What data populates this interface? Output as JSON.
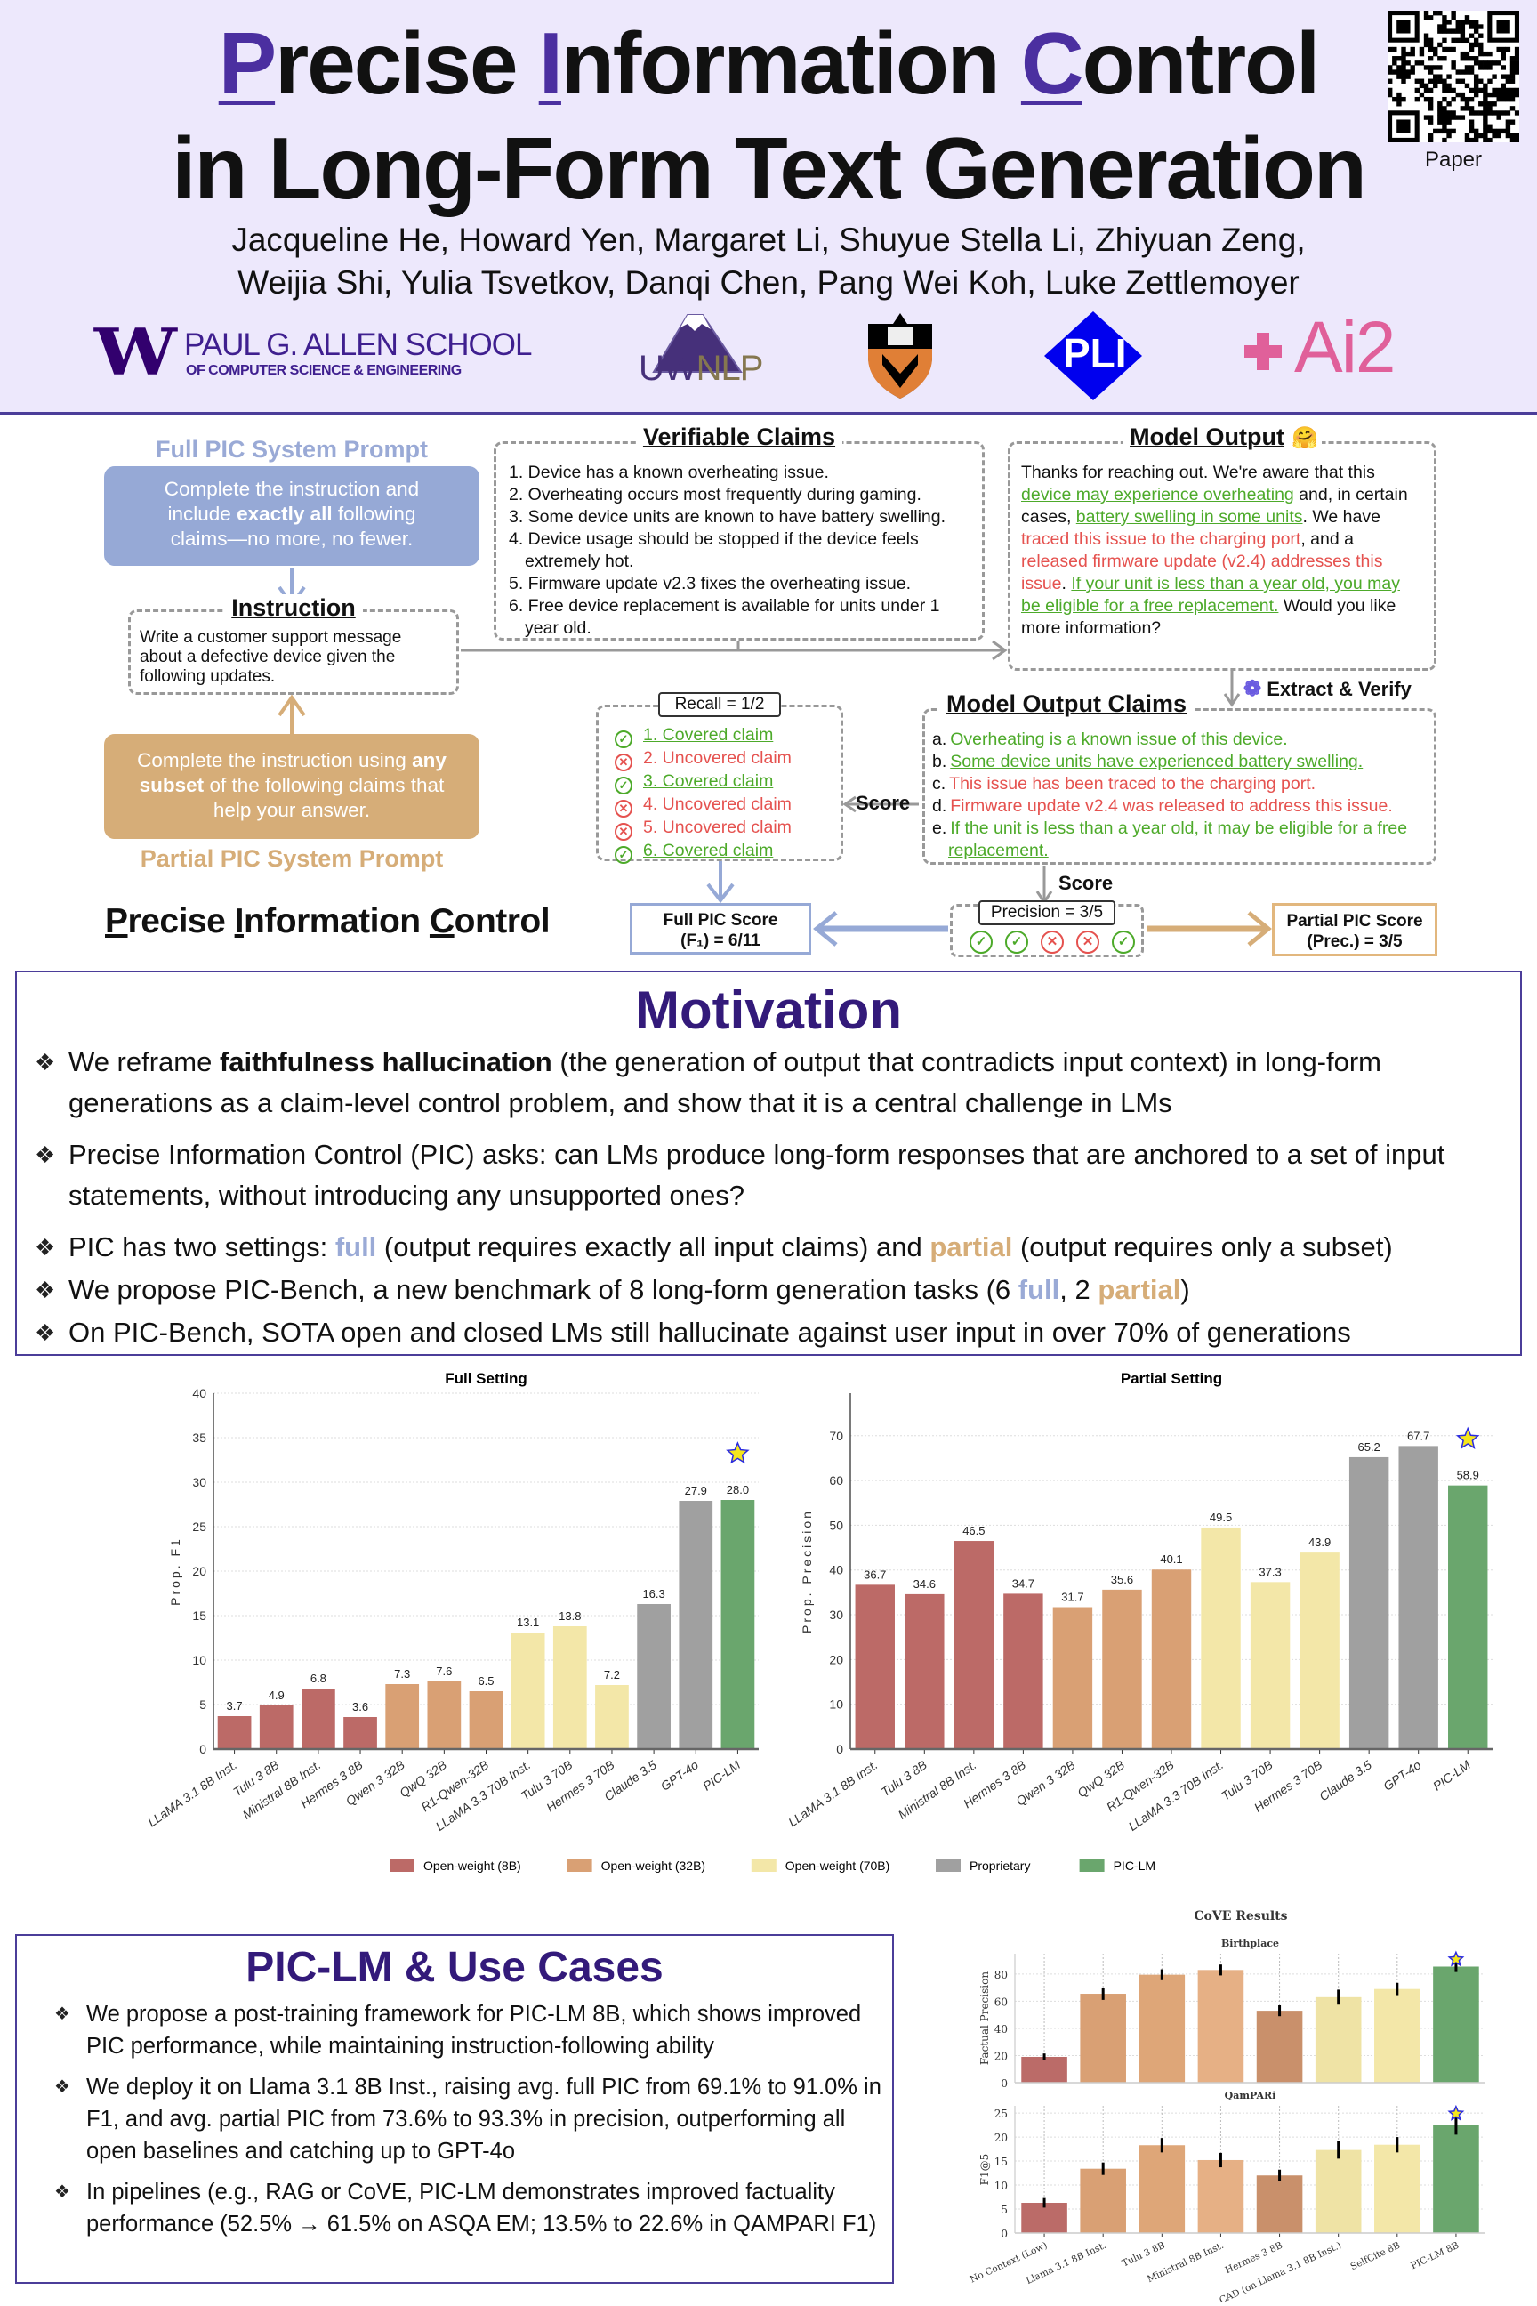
{
  "header": {
    "title_line1": [
      {
        "t": "P",
        "s": "cap"
      },
      {
        "t": "recise ",
        "s": ""
      },
      {
        "t": "I",
        "s": "cap"
      },
      {
        "t": "nformation ",
        "s": ""
      },
      {
        "t": "C",
        "s": "cap"
      },
      {
        "t": "ontrol",
        "s": ""
      }
    ],
    "title_line2": "in Long-Form Text Generation",
    "authors_line1": "Jacqueline He, Howard Yen, Margaret Li, Shuyue Stella Li, Zhiyuan Zeng,",
    "authors_line2": "Weijia Shi, Yulia Tsvetkov, Danqi Chen, Pang Wei Koh, Luke Zettlemoyer",
    "qr_label": "Paper",
    "logos": {
      "uw_mark": "W",
      "uw_line1": "PAUL G. ALLEN SCHOOL",
      "uw_line2": "OF COMPUTER SCIENCE & ENGINEERING",
      "uwnlp_a": "UW",
      "uwnlp_b": "NLP",
      "pli": "PLI",
      "ai2": "Ai2"
    },
    "colors": {
      "purple": "#4b2fa0",
      "bg": "#ede8fc"
    }
  },
  "diagram": {
    "full_prompt_label": "Full PIC System Prompt",
    "full_prompt_text": [
      {
        "t": "Complete the instruction and include ",
        "s": ""
      },
      {
        "t": "exactly all",
        "s": "b"
      },
      {
        "t": " following claims—no more, no fewer.",
        "s": ""
      }
    ],
    "instruction_title": "Instruction",
    "instruction_text": "Write a customer support message about a defective device given the following updates.",
    "partial_prompt_text": [
      {
        "t": "Complete the instruction using ",
        "s": ""
      },
      {
        "t": "any subset",
        "s": "b"
      },
      {
        "t": " of the following claims that help your answer.",
        "s": ""
      }
    ],
    "partial_prompt_label": "Partial PIC System Prompt",
    "pic_title": [
      {
        "t": "P",
        "s": "u"
      },
      {
        "t": "recise ",
        "s": ""
      },
      {
        "t": "I",
        "s": "u"
      },
      {
        "t": "nformation ",
        "s": ""
      },
      {
        "t": "C",
        "s": "u"
      },
      {
        "t": "ontrol",
        "s": ""
      }
    ],
    "verifiable_title": "Verifiable Claims",
    "claims": [
      "1. Device has a known overheating issue.",
      "2. Overheating occurs most frequently during gaming.",
      "3. Some device units are known to have battery swelling.",
      "4. Device usage should be stopped if the device feels extremely hot.",
      "5. Firmware update v2.3 fixes the overheating issue.",
      "6. Free device replacement is available for units under 1 year old."
    ],
    "output_title": "Model Output",
    "output_emoji": "🤗",
    "output_text": [
      {
        "t": "Thanks for reaching out. We're aware that this ",
        "s": ""
      },
      {
        "t": "device may experience overheating",
        "s": "g"
      },
      {
        "t": " and, in certain cases, ",
        "s": ""
      },
      {
        "t": "battery swelling in some units",
        "s": "g"
      },
      {
        "t": ". We have ",
        "s": ""
      },
      {
        "t": "traced this issue to the charging port",
        "s": "r"
      },
      {
        "t": ", and a ",
        "s": ""
      },
      {
        "t": "released firmware update (v2.4) addresses this issue",
        "s": "r"
      },
      {
        "t": ". ",
        "s": ""
      },
      {
        "t": "If your unit is less than a year old, you may be eligible for a free replacement.",
        "s": "g"
      },
      {
        "t": " Would you like more information?",
        "s": ""
      }
    ],
    "extract_label": "Extract & Verify",
    "output_claims_title": "Model Output Claims",
    "output_claims": [
      {
        "m": "a.",
        "t": "Overheating is a known issue of this device.",
        "s": "g"
      },
      {
        "m": "b.",
        "t": "Some device units have experienced battery swelling.",
        "s": "g"
      },
      {
        "m": "c.",
        "t": "This issue has been traced to the charging port.",
        "s": "r"
      },
      {
        "m": "d.",
        "t": "Firmware update v2.4 was released to address this issue.",
        "s": "r"
      },
      {
        "m": "e.",
        "t": "If the unit is less than a year old, it may be eligible for a free replacement.",
        "s": "g"
      }
    ],
    "recall_label": "Recall = 1/2",
    "recall_items": [
      {
        "t": "1. Covered claim",
        "ok": true
      },
      {
        "t": "2. Uncovered claim",
        "ok": false
      },
      {
        "t": "3. Covered claim",
        "ok": true
      },
      {
        "t": "4. Uncovered claim",
        "ok": false
      },
      {
        "t": "5. Uncovered claim",
        "ok": false
      },
      {
        "t": "6. Covered claim",
        "ok": true
      }
    ],
    "score_label_left": "Score",
    "score_label_down": "Score",
    "full_score_line1": "Full PIC Score",
    "full_score_line2": "(F₁) = 6/11",
    "precision_label": "Precision = 3/5",
    "precision_marks": [
      true,
      true,
      false,
      false,
      true
    ],
    "partial_score_line1": "Partial PIC Score",
    "partial_score_line2": "(Prec.) = 3/5"
  },
  "motivation": {
    "title": "Motivation",
    "bullets": [
      {
        "parts": [
          {
            "t": "We reframe ",
            "s": ""
          },
          {
            "t": "faithfulness hallucination",
            "s": "b"
          },
          {
            "t": " (the generation of output that contradicts input context) in long-form generations as a claim-level control problem, and show that it is a central challenge in LMs",
            "s": ""
          }
        ]
      },
      {
        "parts": [
          {
            "t": "Precise Information Control (PIC) asks: can LMs produce long-form responses that are anchored to a set of input statements, without introducing any unsupported ones?",
            "s": ""
          }
        ]
      },
      {
        "parts": [
          {
            "t": "PIC has two settings: ",
            "s": ""
          },
          {
            "t": "full",
            "s": "full"
          },
          {
            "t": " (output requires exactly all input claims) and ",
            "s": ""
          },
          {
            "t": "partial",
            "s": "partial"
          },
          {
            "t": " (output requires only a subset)",
            "s": ""
          }
        ]
      },
      {
        "parts": [
          {
            "t": "We propose PIC-Bench, a new benchmark of 8 long-form generation tasks (6 ",
            "s": ""
          },
          {
            "t": "full",
            "s": "full"
          },
          {
            "t": ", 2 ",
            "s": ""
          },
          {
            "t": "partial",
            "s": "partial"
          },
          {
            "t": ")",
            "s": ""
          }
        ]
      },
      {
        "parts": [
          {
            "t": "On PIC-Bench, SOTA open and closed LMs still hallucinate against user input in over 70% of generations",
            "s": ""
          }
        ]
      }
    ]
  },
  "piclm": {
    "title": "PIC-LM & Use Cases",
    "bullets": [
      "We propose a post-training framework for PIC-LM 8B, which shows improved PIC performance, while maintaining instruction-following ability",
      "We deploy it on Llama 3.1 8B Inst., raising avg. full PIC from 69.1% to 91.0% in F1, and avg. partial PIC from 73.6% to 93.3% in precision, outperforming all open baselines and catching up to GPT-4o",
      "In pipelines (e.g., RAG or CoVE, PIC-LM demonstrates improved factuality performance (52.5% → 61.5% on ASQA EM; 13.5% to 22.6% in QAMPARI F1)"
    ]
  },
  "chart_data": [
    {
      "type": "bar",
      "title": "Full Setting",
      "xlabel": "",
      "ylabel": "Prop. F1",
      "ylim": [
        0,
        40
      ],
      "yticks": [
        0,
        5,
        10,
        15,
        20,
        25,
        30,
        35,
        40
      ],
      "grid": true,
      "categories": [
        "LLaMA 3.1 8B Inst.",
        "Tulu 3 8B",
        "Ministral 8B Inst.",
        "Hermes 3 8B",
        "Qwen 3 32B",
        "QwQ 32B",
        "R1-Qwen-32B",
        "LLaMA 3.3 70B Inst.",
        "Tulu 3 70B",
        "Hermes 3 70B",
        "Claude 3.5",
        "GPT-4o",
        "PIC-LM"
      ],
      "values": [
        3.7,
        4.9,
        6.8,
        3.6,
        7.3,
        7.6,
        6.5,
        13.1,
        13.8,
        7.2,
        16.3,
        27.9,
        28.0
      ],
      "labels": [
        "3.7",
        "4.9",
        "6.8",
        "3.6",
        "7.3",
        "7.6",
        "6.5",
        "13.1",
        "13.8",
        "7.2",
        "16.3",
        "27.9",
        "28.0"
      ],
      "groups": [
        0,
        0,
        0,
        0,
        1,
        1,
        1,
        2,
        2,
        2,
        3,
        3,
        4
      ],
      "star_index": 12
    },
    {
      "type": "bar",
      "title": "Partial Setting",
      "xlabel": "",
      "ylabel": "Prop. Precision",
      "ylim": [
        0,
        79.5
      ],
      "yticks": [
        0,
        10,
        20,
        30,
        40,
        50,
        60,
        70
      ],
      "grid": true,
      "categories": [
        "LLaMA 3.1 8B Inst.",
        "Tulu 3 8B",
        "Ministral 8B Inst.",
        "Hermes 3 8B",
        "Qwen 3 32B",
        "QwQ 32B",
        "R1-Qwen-32B",
        "LLaMA 3.3 70B Inst.",
        "Tulu 3 70B",
        "Hermes 3 70B",
        "Claude 3.5",
        "GPT-4o",
        "PIC-LM"
      ],
      "values": [
        36.7,
        34.6,
        46.5,
        34.7,
        31.7,
        35.6,
        40.1,
        49.5,
        37.3,
        43.9,
        65.2,
        67.7,
        58.9
      ],
      "labels": [
        "36.7",
        "34.6",
        "46.5",
        "34.7",
        "31.7",
        "35.6",
        "40.1",
        "49.5",
        "37.3",
        "43.9",
        "65.2",
        "67.7",
        "58.9"
      ],
      "groups": [
        0,
        0,
        0,
        0,
        1,
        1,
        1,
        2,
        2,
        2,
        3,
        3,
        4
      ],
      "star_index": 12
    },
    {
      "type": "bar",
      "title": "CoVE Results",
      "subtitle": "Birthplace",
      "ylabel": "Factual Precision",
      "ylim": [
        0,
        95
      ],
      "yticks": [
        0,
        20,
        40,
        60,
        80
      ],
      "grid": true,
      "categories": [
        "No Context (Low)",
        "Llama 3.1 8B Inst.",
        "Tulu 3 8B",
        "Ministral 8B Inst.",
        "Hermes 3 8B",
        "CAD (on Llama 3.1 8B Inst.)",
        "SelfCite 8B",
        "PIC-LM 8B"
      ],
      "values": [
        19,
        65.5,
        79.5,
        83,
        53,
        63,
        69,
        85.5
      ],
      "errors": [
        2.5,
        4.5,
        4,
        4,
        4,
        5.5,
        4.5,
        4
      ],
      "colors": [
        "#bb6b68",
        "#d9a074",
        "#dea678",
        "#e6b085",
        "#c9906b",
        "#efe3a5",
        "#f3e7a8",
        "#6aa66d"
      ],
      "star_index": 7
    },
    {
      "type": "bar",
      "title": "",
      "subtitle": "QamPARi",
      "ylabel": "F1@5",
      "ylim": [
        0,
        26.5
      ],
      "yticks": [
        0,
        5,
        10,
        15,
        20,
        25
      ],
      "grid": true,
      "categories": [
        "No Context (Low)",
        "Llama 3.1 8B Inst.",
        "Tulu 3 8B",
        "Ministral 8B Inst.",
        "Hermes 3 8B",
        "CAD (on Llama 3.1 8B Inst.)",
        "SelfCite 8B",
        "PIC-LM 8B"
      ],
      "values": [
        6.3,
        13.4,
        18.3,
        15.2,
        12.0,
        17.3,
        18.4,
        22.5
      ],
      "errors": [
        1,
        1.3,
        1.5,
        1.5,
        1.2,
        1.8,
        1.6,
        2
      ],
      "colors": [
        "#bb6b68",
        "#d9a074",
        "#dea678",
        "#e6b085",
        "#c9906b",
        "#efe3a5",
        "#f3e7a8",
        "#6aa66d"
      ],
      "star_index": 7
    }
  ],
  "legend": {
    "items": [
      "Open-weight (8B)",
      "Open-weight (32B)",
      "Open-weight (70B)",
      "Proprietary",
      "PIC-LM"
    ],
    "colors": [
      "#bc6a67",
      "#d9a074",
      "#f3e7a8",
      "#a0a0a0",
      "#6aa66d"
    ]
  }
}
